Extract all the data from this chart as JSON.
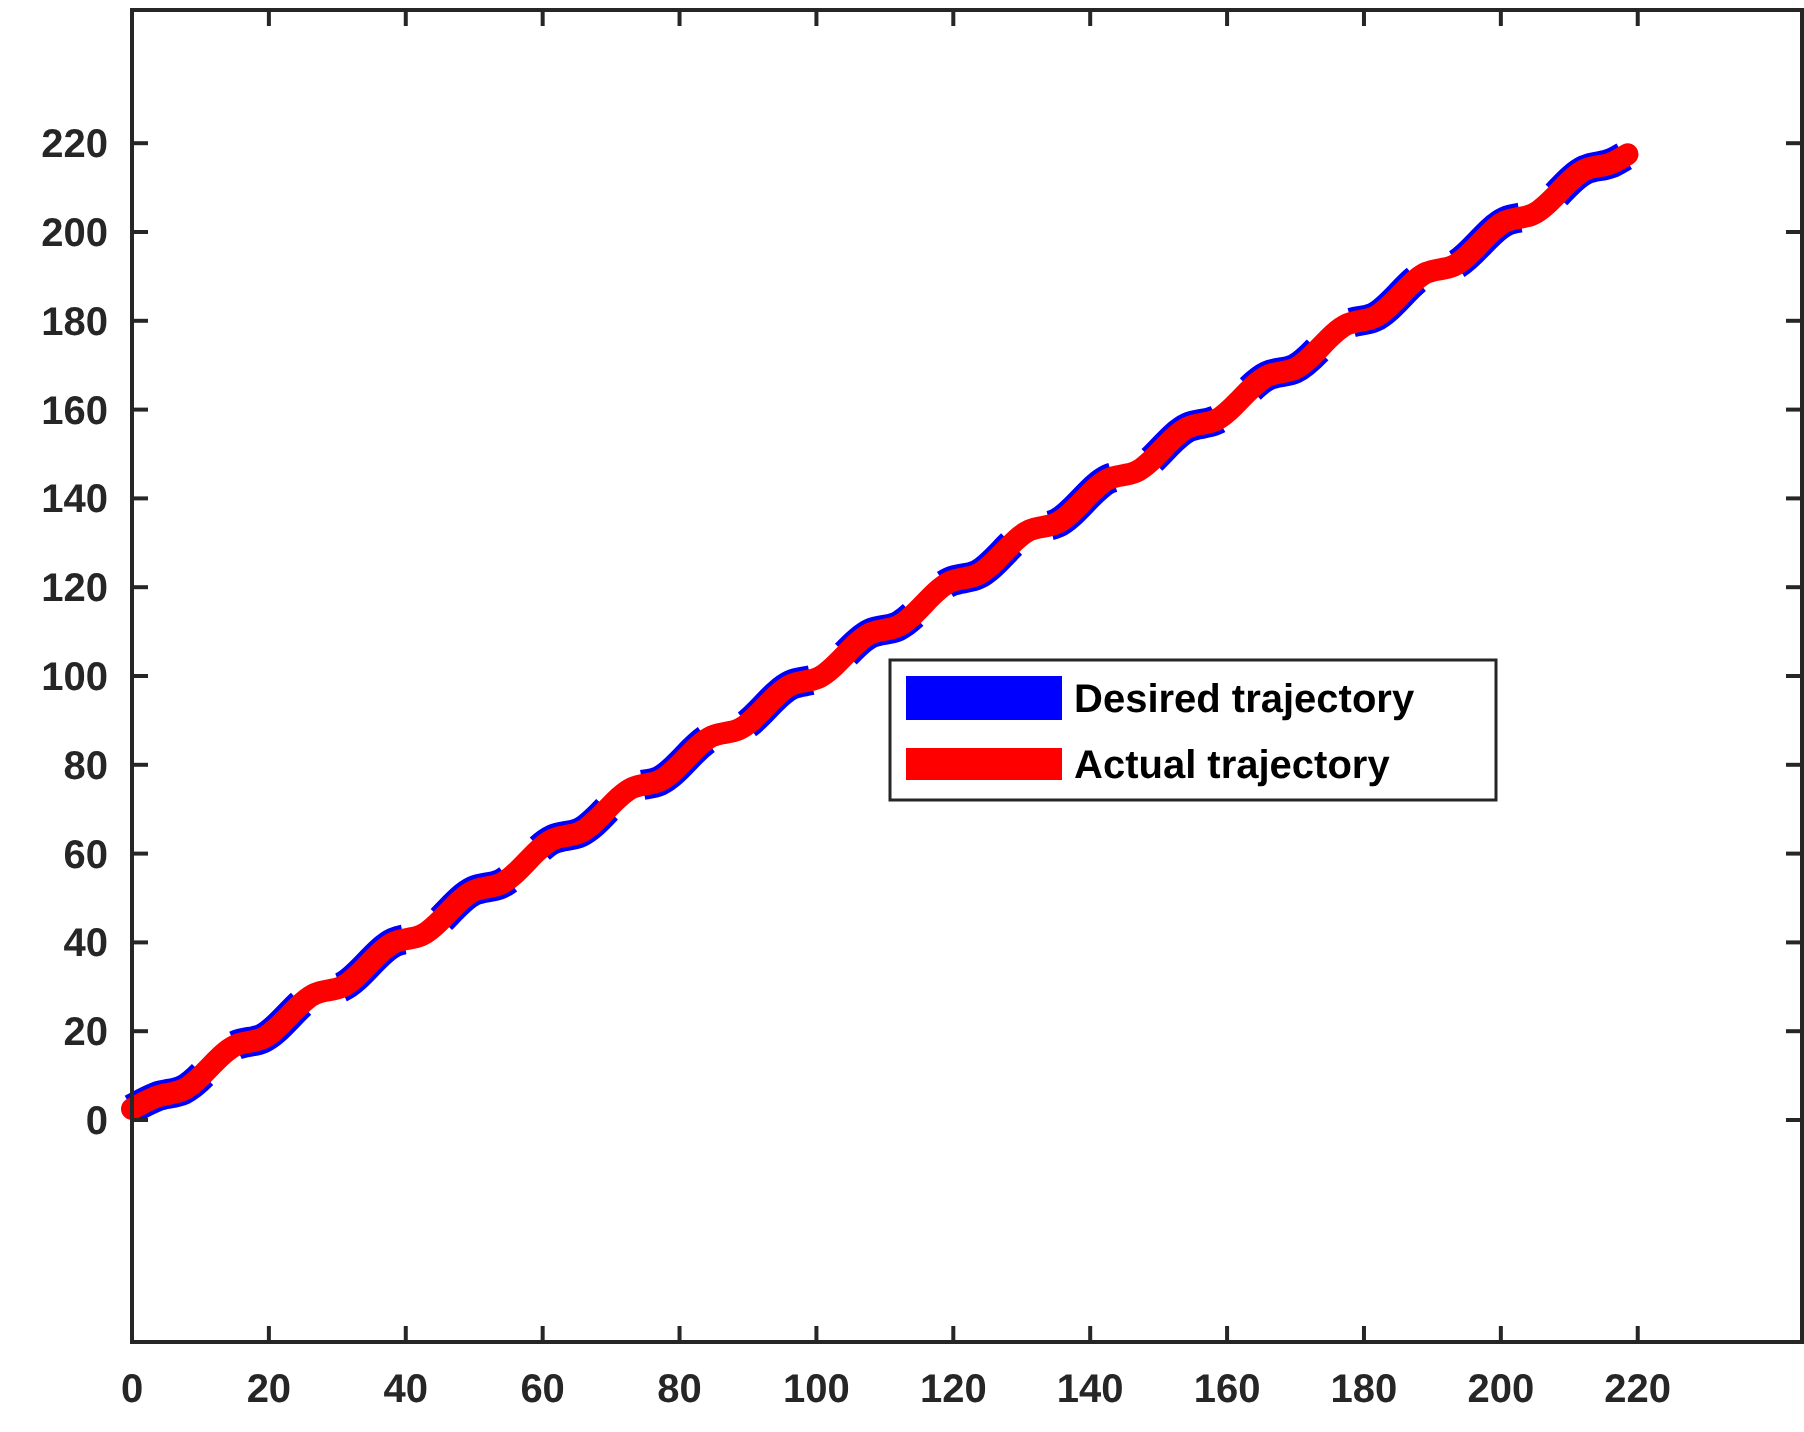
{
  "chart_data": {
    "type": "line",
    "x": [
      0,
      3.5,
      7.5,
      15.1,
      19.1,
      26.7,
      30.7,
      38.3,
      42.3,
      49.9,
      53.9,
      61.5,
      65.5,
      73.1,
      77.1,
      84.7,
      88.7,
      96.3,
      100.3,
      107.9,
      111.9,
      119.5,
      123.5,
      131.1,
      135.1,
      142.7,
      146.7,
      154.3,
      158.3,
      165.9,
      169.9,
      177.5,
      181.5,
      189.1,
      193.1,
      200.7,
      204.7,
      212.3,
      216.3,
      218.5
    ],
    "series": [
      {
        "name": "Desired trajectory",
        "color": "#0000ff",
        "line_style": "dashed",
        "values": [
          2.5,
          5.2,
          6.8,
          16.8,
          18.4,
          28.4,
          30,
          40,
          41.6,
          51.6,
          53.2,
          63.2,
          64.8,
          74.8,
          76.4,
          86.4,
          88,
          98,
          99.6,
          109.6,
          111.2,
          121.2,
          122.8,
          132.8,
          134.4,
          144.4,
          146,
          156,
          157.6,
          167.6,
          169.2,
          179.2,
          180.8,
          190.8,
          192.4,
          202.4,
          204,
          214,
          215.6,
          217.5
        ]
      },
      {
        "name": "Actual trajectory",
        "color": "#ff0000",
        "line_style": "solid",
        "values": [
          2.5,
          5.2,
          6.8,
          16.8,
          18.4,
          28.4,
          30,
          40,
          41.6,
          51.6,
          53.2,
          63.2,
          64.8,
          74.8,
          76.4,
          86.4,
          88,
          98,
          99.6,
          109.6,
          111.2,
          121.2,
          122.8,
          132.8,
          134.4,
          144.4,
          146,
          156,
          157.6,
          167.6,
          169.2,
          179.2,
          180.8,
          190.8,
          192.4,
          202.4,
          204,
          214,
          215.6,
          217.5
        ]
      }
    ],
    "xlim": [
      0,
      244
    ],
    "xticks": [
      0,
      20,
      40,
      60,
      80,
      100,
      120,
      140,
      160,
      180,
      200,
      220
    ],
    "ylim": [
      -50,
      250
    ],
    "yticks": [
      0,
      20,
      40,
      60,
      80,
      100,
      120,
      140,
      160,
      180,
      200,
      220
    ],
    "grid": false,
    "legend": "right"
  }
}
